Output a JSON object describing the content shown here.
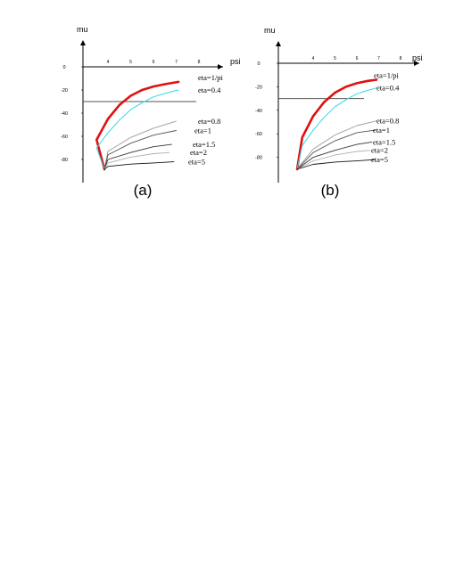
{
  "chart_data": [
    {
      "type": "line",
      "caption": "(a)",
      "xlabel": "psi",
      "ylabel": "mu",
      "xticks": [
        "4",
        "5",
        "6",
        "7",
        "8"
      ],
      "yticks": [
        "0",
        "-20",
        "-40",
        "-60",
        "-80"
      ],
      "grid": false,
      "ylim": [
        -100,
        0
      ],
      "threshold": -30,
      "series": [
        {
          "name": "eta=1/pi",
          "color": "#e01010",
          "x": [
            3,
            3.5,
            4,
            4.5,
            5,
            5.5,
            6,
            6.5,
            7.1
          ],
          "y": [
            -88,
            -63,
            -45,
            -33,
            -25,
            -20,
            -17,
            -15,
            -13
          ]
        },
        {
          "name": "eta=0.4",
          "color": "#30d8e8",
          "x": [
            3,
            3.5,
            4,
            4.5,
            5,
            5.5,
            6,
            6.5,
            7.1
          ],
          "y": [
            -88,
            -70,
            -57,
            -46,
            -37,
            -31,
            -26,
            -23,
            -20
          ]
        },
        {
          "name": "eta=0.8",
          "color": "#9a9a9a",
          "x": [
            3,
            4,
            5,
            6,
            7
          ],
          "y": [
            -88,
            -73,
            -61,
            -53,
            -47
          ]
        },
        {
          "name": "eta=1",
          "color": "#555555",
          "x": [
            3,
            4,
            5,
            6,
            7
          ],
          "y": [
            -88,
            -76,
            -66,
            -59,
            -55
          ]
        },
        {
          "name": "eta=1.5",
          "color": "#333333",
          "x": [
            3,
            4,
            5,
            6,
            6.8
          ],
          "y": [
            -88,
            -80,
            -74,
            -69,
            -67
          ]
        },
        {
          "name": "eta=2",
          "color": "#b0b0b0",
          "x": [
            3,
            4,
            5,
            6,
            6.7
          ],
          "y": [
            -88,
            -83,
            -78,
            -75,
            -74
          ]
        },
        {
          "name": "eta=5",
          "color": "#111111",
          "x": [
            3,
            4,
            5,
            6,
            6.9
          ],
          "y": [
            -88,
            -86,
            -84,
            -83,
            -82
          ]
        }
      ]
    },
    {
      "type": "line",
      "caption": "(b)",
      "xlabel": "psi",
      "ylabel": "mu",
      "xticks": [
        "4",
        "5",
        "6",
        "7",
        "8"
      ],
      "yticks": [
        "0",
        "-20",
        "-40",
        "-60",
        "-80"
      ],
      "grid": false,
      "ylim": [
        -100,
        0
      ],
      "threshold": -30,
      "series": [
        {
          "name": "eta=1/pi",
          "color": "#e01010",
          "x": [
            3,
            3.5,
            4,
            4.5,
            5,
            5.5,
            6,
            6.5,
            6.9
          ],
          "y": [
            -88,
            -63,
            -45,
            -33,
            -25,
            -20,
            -17,
            -15,
            -14
          ]
        },
        {
          "name": "eta=0.4",
          "color": "#30d8e8",
          "x": [
            3,
            3.5,
            4,
            4.5,
            5,
            5.5,
            6,
            6.5,
            6.9
          ],
          "y": [
            -88,
            -70,
            -57,
            -46,
            -37,
            -31,
            -26,
            -23,
            -21
          ]
        },
        {
          "name": "eta=0.8",
          "color": "#9a9a9a",
          "x": [
            3,
            4,
            5,
            6,
            6.9
          ],
          "y": [
            -88,
            -73,
            -61,
            -53,
            -49
          ]
        },
        {
          "name": "eta=1",
          "color": "#555555",
          "x": [
            3,
            4,
            5,
            6,
            6.8
          ],
          "y": [
            -88,
            -76,
            -66,
            -59,
            -57
          ]
        },
        {
          "name": "eta=1.5",
          "color": "#333333",
          "x": [
            3,
            4,
            5,
            6,
            6.7
          ],
          "y": [
            -88,
            -80,
            -74,
            -69,
            -67
          ]
        },
        {
          "name": "eta=2",
          "color": "#b0b0b0",
          "x": [
            3,
            4,
            5,
            6,
            6.6
          ],
          "y": [
            -88,
            -83,
            -78,
            -75,
            -74
          ]
        },
        {
          "name": "eta=5",
          "color": "#111111",
          "x": [
            3,
            4,
            5,
            6,
            6.8
          ],
          "y": [
            -88,
            -86,
            -84,
            -83,
            -82
          ]
        }
      ]
    }
  ]
}
